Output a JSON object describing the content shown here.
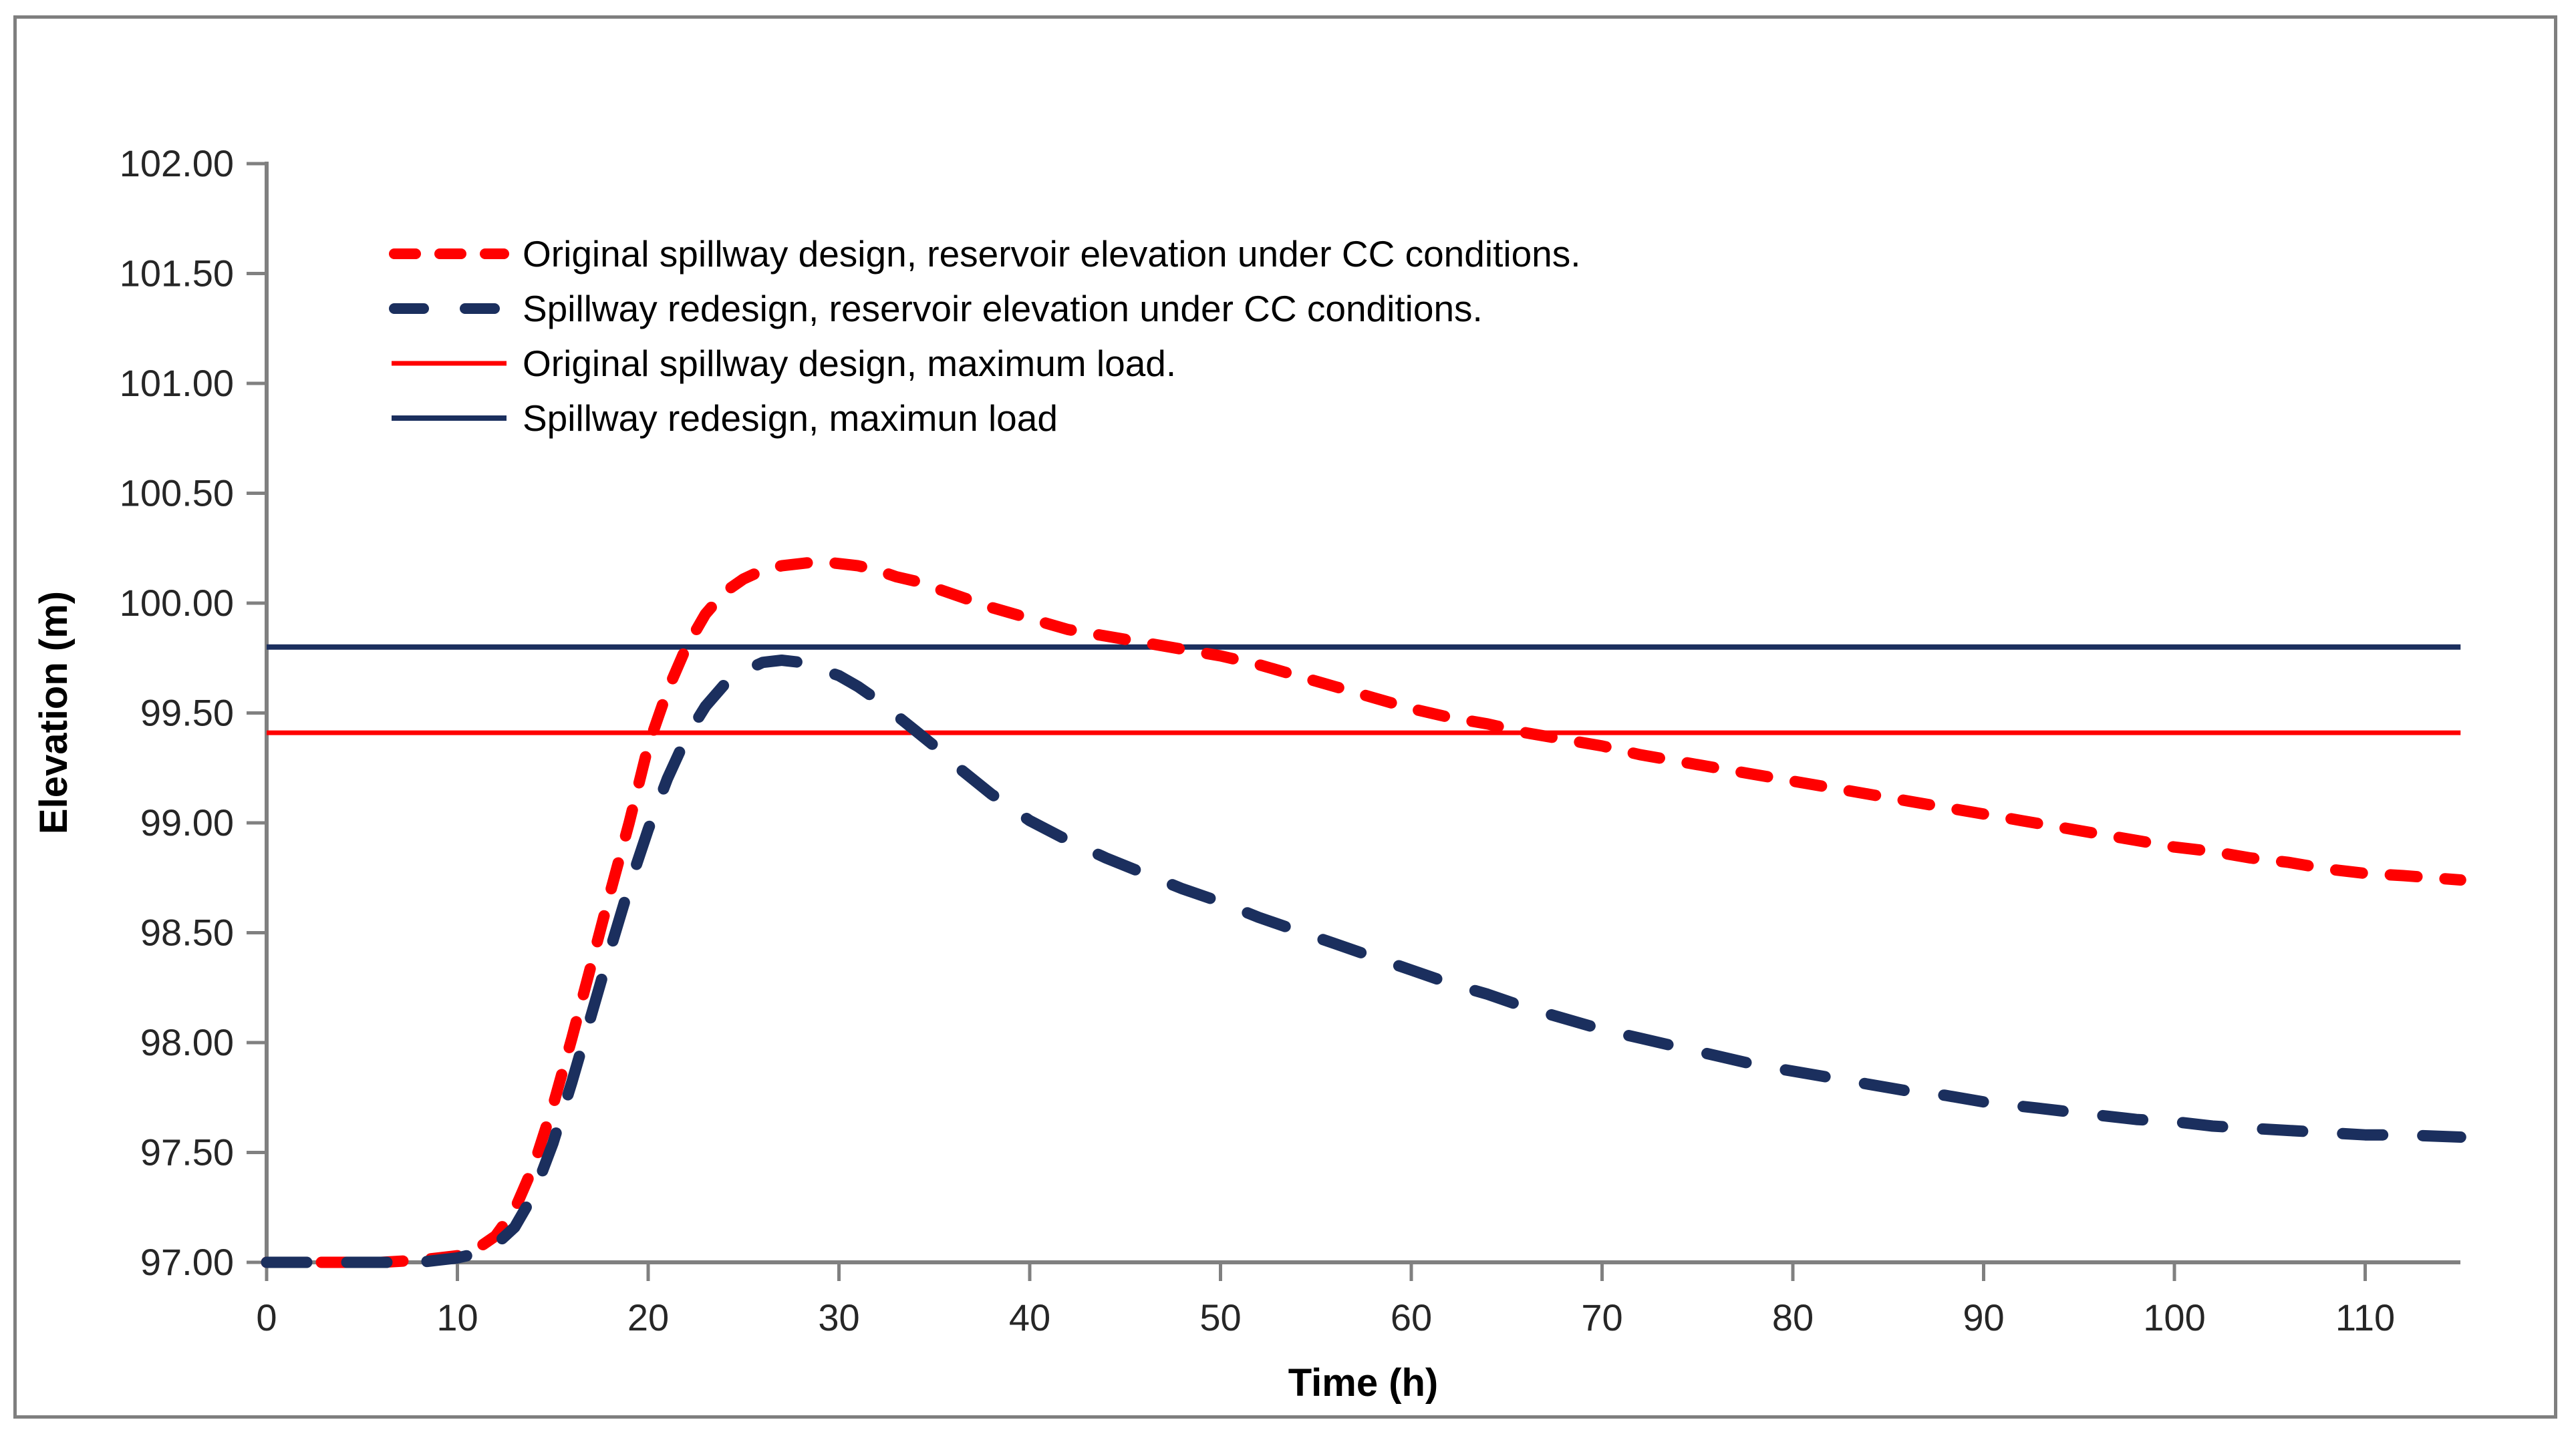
{
  "figure": {
    "background_color": "#ffffff",
    "border_color": "#7f7f7f",
    "axis_color": "#808080",
    "tick_label_color": "#262626"
  },
  "chart_data": {
    "type": "line",
    "title": "",
    "xlabel": "Time (h)",
    "ylabel": "Elevation (m)",
    "xlim": [
      0,
      115
    ],
    "ylim": [
      97,
      102
    ],
    "grid": false,
    "legend_position": "upper-left-inside",
    "x_ticks": [
      0,
      10,
      20,
      30,
      40,
      50,
      60,
      70,
      80,
      90,
      100,
      110
    ],
    "x_tick_labels": [
      "0",
      "10",
      "20",
      "30",
      "40",
      "50",
      "60",
      "70",
      "80",
      "90",
      "100",
      "110"
    ],
    "y_ticks": [
      102,
      101.5,
      101,
      100.5,
      100,
      99.5,
      99,
      98.5,
      98,
      97.5,
      97
    ],
    "y_tick_labels": [
      "102.00",
      "101.50",
      "101.00",
      "100.50",
      "100.00",
      "99.50",
      "99.00",
      "98.50",
      "98.00",
      "97.50",
      "97.00"
    ],
    "series": [
      {
        "name": "Original spillway design, reservoir elevation under CC conditions.",
        "type": "curve",
        "color": "#ff0000",
        "line_style": "dashed",
        "line_width": 17,
        "dash": [
          40,
          42
        ],
        "peak": [
          29,
          100.19
        ],
        "points": [
          [
            0,
            97
          ],
          [
            3,
            97
          ],
          [
            6,
            97
          ],
          [
            8,
            97.01
          ],
          [
            9,
            97.02
          ],
          [
            10,
            97.03
          ],
          [
            11,
            97.06
          ],
          [
            12,
            97.12
          ],
          [
            13,
            97.24
          ],
          [
            14,
            97.44
          ],
          [
            15,
            97.71
          ],
          [
            16,
            98.02
          ],
          [
            17,
            98.35
          ],
          [
            18,
            98.68
          ],
          [
            19,
            99.0
          ],
          [
            20,
            99.35
          ],
          [
            21,
            99.6
          ],
          [
            22,
            99.8
          ],
          [
            23,
            99.95
          ],
          [
            24,
            100.05
          ],
          [
            25,
            100.11
          ],
          [
            26,
            100.15
          ],
          [
            27,
            100.17
          ],
          [
            28,
            100.18
          ],
          [
            29,
            100.19
          ],
          [
            30,
            100.18
          ],
          [
            31,
            100.17
          ],
          [
            32,
            100.15
          ],
          [
            33,
            100.12
          ],
          [
            34,
            100.1
          ],
          [
            36,
            100.04
          ],
          [
            38,
            99.98
          ],
          [
            40,
            99.93
          ],
          [
            42,
            99.88
          ],
          [
            44,
            99.85
          ],
          [
            46,
            99.82
          ],
          [
            48,
            99.79
          ],
          [
            50,
            99.76
          ],
          [
            52,
            99.72
          ],
          [
            54,
            99.67
          ],
          [
            56,
            99.62
          ],
          [
            58,
            99.57
          ],
          [
            60,
            99.52
          ],
          [
            62,
            99.48
          ],
          [
            64,
            99.45
          ],
          [
            66,
            99.41
          ],
          [
            68,
            99.38
          ],
          [
            70,
            99.35
          ],
          [
            72,
            99.31
          ],
          [
            74,
            99.28
          ],
          [
            76,
            99.25
          ],
          [
            78,
            99.22
          ],
          [
            80,
            99.19
          ],
          [
            82,
            99.16
          ],
          [
            84,
            99.13
          ],
          [
            86,
            99.1
          ],
          [
            88,
            99.07
          ],
          [
            90,
            99.04
          ],
          [
            92,
            99.01
          ],
          [
            94,
            98.98
          ],
          [
            96,
            98.95
          ],
          [
            98,
            98.92
          ],
          [
            100,
            98.89
          ],
          [
            102,
            98.87
          ],
          [
            104,
            98.84
          ],
          [
            106,
            98.82
          ],
          [
            108,
            98.79
          ],
          [
            110,
            98.77
          ],
          [
            112,
            98.76
          ],
          [
            115,
            98.74
          ]
        ]
      },
      {
        "name": "Spillway redesign, reservoir elevation under CC conditions.",
        "type": "curve",
        "color": "#1b2f5e",
        "line_style": "dashed",
        "line_width": 17,
        "dash": [
          60,
          60
        ],
        "peak": [
          27,
          99.74
        ],
        "points": [
          [
            0,
            97
          ],
          [
            3,
            97
          ],
          [
            6,
            97
          ],
          [
            8,
            97
          ],
          [
            9,
            97.01
          ],
          [
            10,
            97.02
          ],
          [
            11,
            97.04
          ],
          [
            12,
            97.08
          ],
          [
            13,
            97.16
          ],
          [
            14,
            97.31
          ],
          [
            15,
            97.54
          ],
          [
            16,
            97.82
          ],
          [
            17,
            98.12
          ],
          [
            18,
            98.42
          ],
          [
            19,
            98.71
          ],
          [
            20,
            98.97
          ],
          [
            21,
            99.2
          ],
          [
            22,
            99.39
          ],
          [
            23,
            99.53
          ],
          [
            24,
            99.63
          ],
          [
            25,
            99.69
          ],
          [
            26,
            99.73
          ],
          [
            27,
            99.74
          ],
          [
            28,
            99.73
          ],
          [
            29,
            99.7
          ],
          [
            30,
            99.67
          ],
          [
            31,
            99.62
          ],
          [
            32,
            99.56
          ],
          [
            33,
            99.49
          ],
          [
            34,
            99.42
          ],
          [
            35,
            99.35
          ],
          [
            36,
            99.27
          ],
          [
            37,
            99.2
          ],
          [
            38,
            99.13
          ],
          [
            39,
            99.07
          ],
          [
            40,
            99.01
          ],
          [
            42,
            98.92
          ],
          [
            44,
            98.84
          ],
          [
            46,
            98.77
          ],
          [
            48,
            98.7
          ],
          [
            50,
            98.64
          ],
          [
            52,
            98.57
          ],
          [
            54,
            98.51
          ],
          [
            56,
            98.45
          ],
          [
            58,
            98.39
          ],
          [
            60,
            98.33
          ],
          [
            62,
            98.27
          ],
          [
            64,
            98.22
          ],
          [
            66,
            98.16
          ],
          [
            68,
            98.11
          ],
          [
            70,
            98.06
          ],
          [
            72,
            98.02
          ],
          [
            74,
            97.98
          ],
          [
            76,
            97.94
          ],
          [
            78,
            97.9
          ],
          [
            80,
            97.87
          ],
          [
            82,
            97.84
          ],
          [
            84,
            97.81
          ],
          [
            86,
            97.78
          ],
          [
            88,
            97.76
          ],
          [
            90,
            97.73
          ],
          [
            92,
            97.71
          ],
          [
            94,
            97.69
          ],
          [
            96,
            97.67
          ],
          [
            98,
            97.65
          ],
          [
            100,
            97.64
          ],
          [
            102,
            97.62
          ],
          [
            104,
            97.61
          ],
          [
            106,
            97.6
          ],
          [
            108,
            97.59
          ],
          [
            110,
            97.58
          ],
          [
            112,
            97.58
          ],
          [
            115,
            97.57
          ]
        ]
      },
      {
        "name": "Original spillway design, maximum load.",
        "type": "hline",
        "color": "#ff0000",
        "line_style": "solid",
        "line_width": 7,
        "value": 99.41
      },
      {
        "name": "Spillway redesign, maximun load",
        "type": "hline",
        "color": "#1b2f5e",
        "line_style": "solid",
        "line_width": 8,
        "value": 99.8
      }
    ]
  }
}
